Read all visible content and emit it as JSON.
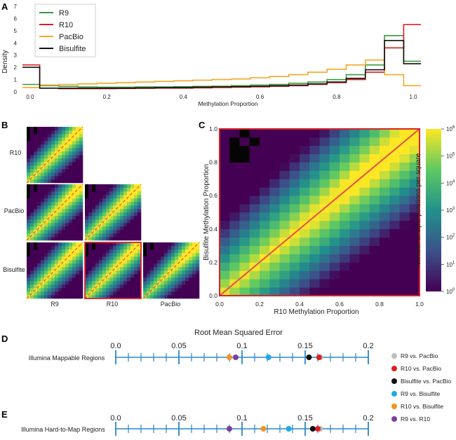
{
  "panels": {
    "A": "A",
    "B": "B",
    "C": "C",
    "D": "D",
    "E": "E"
  },
  "chart_data": [
    {
      "type": "line",
      "panel": "A",
      "xlabel": "Methylation Proportion",
      "ylabel": "Density",
      "xlim": [
        -0.02,
        1.02
      ],
      "ylim": [
        0,
        7
      ],
      "xticks": [
        "0.0",
        "0.2",
        "0.4",
        "0.6",
        "0.8",
        "1.0"
      ],
      "yticks": [
        "0",
        "1",
        "2",
        "3",
        "4",
        "5",
        "6",
        "7"
      ],
      "legend_position": "top-left",
      "bin_edges": [
        -0.02,
        0.025,
        0.075,
        0.125,
        0.175,
        0.225,
        0.275,
        0.325,
        0.375,
        0.425,
        0.475,
        0.525,
        0.575,
        0.625,
        0.675,
        0.725,
        0.775,
        0.825,
        0.875,
        0.925,
        0.975,
        1.02
      ],
      "series": [
        {
          "name": "R9",
          "color": "#3a9a3a",
          "values": [
            0.6,
            0.5,
            0.45,
            0.4,
            0.38,
            0.38,
            0.4,
            0.4,
            0.42,
            0.44,
            0.46,
            0.5,
            0.55,
            0.6,
            0.7,
            0.8,
            1.0,
            1.4,
            2.2,
            4.6,
            2.5
          ]
        },
        {
          "name": "R10",
          "color": "#d62020",
          "values": [
            2.2,
            0.3,
            0.25,
            0.25,
            0.25,
            0.27,
            0.28,
            0.3,
            0.3,
            0.32,
            0.35,
            0.38,
            0.4,
            0.45,
            0.5,
            0.6,
            0.75,
            1.0,
            1.6,
            3.6,
            5.5
          ]
        },
        {
          "name": "PacBio",
          "color": "#f5a623",
          "values": [
            0.35,
            0.55,
            0.6,
            0.65,
            0.7,
            0.75,
            0.8,
            0.85,
            0.9,
            0.95,
            1.0,
            1.05,
            1.15,
            1.25,
            1.4,
            1.6,
            1.85,
            2.2,
            2.6,
            1.4,
            0.5
          ]
        },
        {
          "name": "Bisulfite",
          "color": "#111111",
          "values": [
            2.0,
            0.3,
            0.3,
            0.3,
            0.3,
            0.3,
            0.32,
            0.34,
            0.35,
            0.38,
            0.4,
            0.42,
            0.45,
            0.5,
            0.55,
            0.65,
            0.8,
            1.1,
            1.8,
            4.2,
            2.3
          ]
        }
      ]
    },
    {
      "type": "heatmap",
      "panel": "B",
      "row_labels": [
        "R10",
        "PacBio",
        "Bisulfite"
      ],
      "col_labels": [
        "R9",
        "R10",
        "PacBio"
      ],
      "highlight": {
        "row": "Bisulfite",
        "col": "R10"
      }
    },
    {
      "type": "heatmap",
      "panel": "C",
      "xlabel": "R10 Methylation Proportion",
      "ylabel": "Bisulfite Methylation Proportion",
      "xlim": [
        0,
        1
      ],
      "ylim": [
        0,
        1
      ],
      "xticks": [
        "0.0",
        "0.2",
        "0.4",
        "0.6",
        "0.8",
        "1.0"
      ],
      "yticks": [
        "0.0",
        "0.2",
        "0.4",
        "0.6",
        "0.8",
        "1.0"
      ],
      "colorbar_label": "Number of CpG positions per square",
      "colorbar_ticks": [
        "10",
        "10",
        "10",
        "10",
        "10",
        "10",
        "10"
      ],
      "colorbar_exponents": [
        "0",
        "1",
        "2",
        "3",
        "4",
        "5",
        "6"
      ],
      "colorscale": "viridis (log)"
    },
    {
      "type": "scatter",
      "panels": [
        "D",
        "E"
      ],
      "title": "Root Mean Squared Error",
      "xlim": [
        0.0,
        0.2
      ],
      "xticks": [
        "0.0",
        "0.05",
        "0.1",
        "0.15",
        "0.2"
      ],
      "rows": [
        {
          "label": "Illumina Mappable Regions",
          "values": [
            0.162,
            0.161,
            0.153,
            0.121,
            0.09,
            0.095
          ]
        },
        {
          "label": "Illumina Hard-to-Map Regions",
          "values": [
            0.162,
            0.16,
            0.156,
            0.137,
            0.117,
            0.09
          ]
        }
      ],
      "series": [
        {
          "name": "R9 vs. PacBio",
          "color": "#bdbdbd"
        },
        {
          "name": "R10 vs. PacBio",
          "color": "#e02020"
        },
        {
          "name": "Bisulfite vs. PacBio",
          "color": "#111111"
        },
        {
          "name": "R9 vs. Bisulfite",
          "color": "#1fa9e8"
        },
        {
          "name": "R10 vs. Bisulfite",
          "color": "#f5931f"
        },
        {
          "name": "R9 vs. R10",
          "color": "#7b3fa0"
        }
      ]
    }
  ]
}
